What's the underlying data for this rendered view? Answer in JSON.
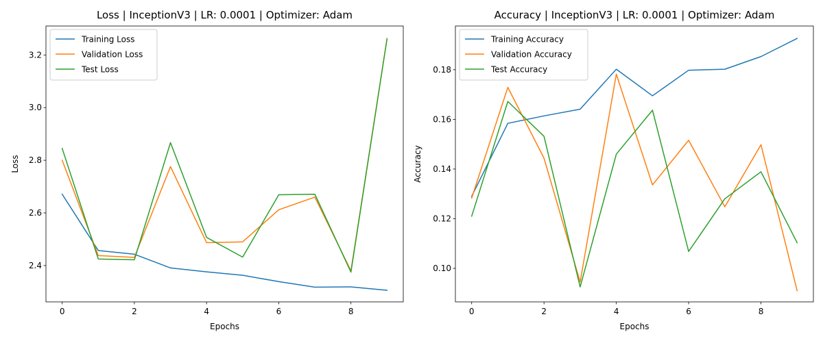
{
  "chart_data": [
    {
      "type": "line",
      "title": "Loss | InceptionV3 | LR: 0.0001 | Optimizer: Adam",
      "xlabel": "Epochs",
      "ylabel": "Loss",
      "xlim": [
        -0.45,
        9.45
      ],
      "ylim": [
        2.262,
        3.31
      ],
      "x": [
        0,
        1,
        2,
        3,
        4,
        5,
        6,
        7,
        8,
        9
      ],
      "xticks": [
        0,
        2,
        4,
        6,
        8
      ],
      "xtick_labels": [
        "0",
        "2",
        "4",
        "6",
        "8"
      ],
      "yticks": [
        2.4,
        2.6,
        2.8,
        3.0,
        3.2
      ],
      "ytick_labels": [
        "2.4",
        "2.6",
        "2.8",
        "3.0",
        "3.2"
      ],
      "grid": false,
      "legend_position": "upper-left",
      "series": [
        {
          "name": "Training Loss",
          "color": "#1f77b4",
          "values": [
            2.671,
            2.457,
            2.443,
            2.391,
            2.376,
            2.363,
            2.339,
            2.318,
            2.319,
            2.306
          ]
        },
        {
          "name": "Validation Loss",
          "color": "#ff7f0e",
          "values": [
            2.8,
            2.438,
            2.431,
            2.776,
            2.487,
            2.49,
            2.612,
            2.66,
            2.38,
            3.262
          ]
        },
        {
          "name": "Test Loss",
          "color": "#2ca02c",
          "values": [
            2.845,
            2.425,
            2.422,
            2.867,
            2.507,
            2.432,
            2.669,
            2.671,
            2.375,
            3.262
          ]
        }
      ]
    },
    {
      "type": "line",
      "title": "Accuracy | InceptionV3 | LR: 0.0001 | Optimizer: Adam",
      "xlabel": "Epochs",
      "ylabel": "Accuracy",
      "xlim": [
        -0.45,
        9.45
      ],
      "ylim": [
        0.0865,
        0.1976
      ],
      "x": [
        0,
        1,
        2,
        3,
        4,
        5,
        6,
        7,
        8,
        9
      ],
      "xticks": [
        0,
        2,
        4,
        6,
        8
      ],
      "xtick_labels": [
        "0",
        "2",
        "4",
        "6",
        "8"
      ],
      "yticks": [
        0.1,
        0.12,
        0.14,
        0.16,
        0.18
      ],
      "ytick_labels": [
        "0.10",
        "0.12",
        "0.14",
        "0.16",
        "0.18"
      ],
      "grid": false,
      "legend_position": "upper-left",
      "series": [
        {
          "name": "Training Accuracy",
          "color": "#1f77b4",
          "values": [
            0.129,
            0.1584,
            0.1614,
            0.1641,
            0.1802,
            0.1695,
            0.1798,
            0.1802,
            0.1853,
            0.1926
          ]
        },
        {
          "name": "Validation Accuracy",
          "color": "#ff7f0e",
          "values": [
            0.1283,
            0.1729,
            0.1444,
            0.0945,
            0.1782,
            0.1336,
            0.1516,
            0.1248,
            0.1498,
            0.091
          ]
        },
        {
          "name": "Test Accuracy",
          "color": "#2ca02c",
          "values": [
            0.121,
            0.1672,
            0.1532,
            0.0925,
            0.146,
            0.1637,
            0.1068,
            0.128,
            0.1389,
            0.1103
          ]
        }
      ]
    }
  ]
}
